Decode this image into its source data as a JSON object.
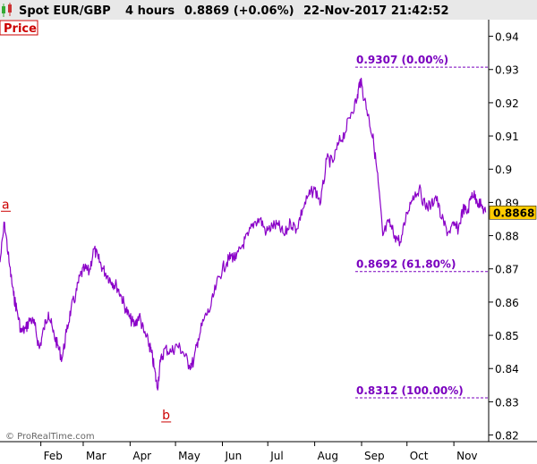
{
  "header": {
    "instrument": "Spot EUR/GBP",
    "timeframe": "4 hours",
    "price_change": "0.8869 (+0.06%)",
    "datetime": "22-Nov-2017 21:42:52"
  },
  "panel_label": "Price",
  "watermark": "© ProRealTime.com",
  "colors": {
    "series": "#8a00c8",
    "annotation": "#7a00bf",
    "marker": "#cc0000",
    "last_price_bg": "#ffcc00",
    "header_bg": "#e8e8e8"
  },
  "chart_data": {
    "type": "line",
    "title": "Spot EUR/GBP",
    "xlabel": "",
    "ylabel": "",
    "ylim": [
      0.818,
      0.945
    ],
    "y_ticks": [
      "0.94",
      "0.93",
      "0.92",
      "0.91",
      "0.9",
      "0.89",
      "0.88",
      "0.87",
      "0.86",
      "0.85",
      "0.84",
      "0.83",
      "0.82"
    ],
    "x_ticks": [
      "Feb",
      "Mar",
      "Apr",
      "May",
      "Jun",
      "Jul",
      "Aug",
      "Sep",
      "Oct",
      "Nov"
    ],
    "x_tick_dates": [
      "2017-02-01",
      "2017-03-01",
      "2017-04-01",
      "2017-05-01",
      "2017-06-01",
      "2017-07-01",
      "2017-08-01",
      "2017-09-01",
      "2017-10-01",
      "2017-11-01"
    ],
    "xlim": [
      "2017-01-05",
      "2017-11-24"
    ],
    "last_price": "0.8868",
    "series": [
      {
        "x": [
          "2017-01-05",
          "2017-01-08",
          "2017-01-11",
          "2017-01-14",
          "2017-01-16",
          "2017-01-19",
          "2017-01-22",
          "2017-01-25",
          "2017-01-28",
          "2017-01-31",
          "2017-02-03",
          "2017-02-06",
          "2017-02-09",
          "2017-02-12",
          "2017-02-15",
          "2017-02-18",
          "2017-02-21",
          "2017-02-24",
          "2017-02-27",
          "2017-03-02",
          "2017-03-05",
          "2017-03-08",
          "2017-03-11",
          "2017-03-14",
          "2017-03-17",
          "2017-03-20",
          "2017-03-23",
          "2017-03-26",
          "2017-03-29",
          "2017-04-01",
          "2017-04-04",
          "2017-04-07",
          "2017-04-10",
          "2017-04-13",
          "2017-04-15",
          "2017-04-17",
          "2017-04-19",
          "2017-04-21",
          "2017-04-24",
          "2017-04-28",
          "2017-05-02",
          "2017-05-06",
          "2017-05-10",
          "2017-05-13",
          "2017-05-16",
          "2017-05-20",
          "2017-05-24",
          "2017-05-28",
          "2017-06-01",
          "2017-06-04",
          "2017-06-07",
          "2017-06-10",
          "2017-06-14",
          "2017-06-18",
          "2017-06-22",
          "2017-06-26",
          "2017-06-30",
          "2017-07-04",
          "2017-07-08",
          "2017-07-12",
          "2017-07-16",
          "2017-07-20",
          "2017-07-24",
          "2017-07-28",
          "2017-08-01",
          "2017-08-05",
          "2017-08-09",
          "2017-08-13",
          "2017-08-17",
          "2017-08-21",
          "2017-08-25",
          "2017-08-29",
          "2017-08-31",
          "2017-09-03",
          "2017-09-06",
          "2017-09-09",
          "2017-09-12",
          "2017-09-15",
          "2017-09-19",
          "2017-09-23",
          "2017-09-27",
          "2017-10-01",
          "2017-10-05",
          "2017-10-09",
          "2017-10-13",
          "2017-10-17",
          "2017-10-20",
          "2017-10-24",
          "2017-10-28",
          "2017-11-01",
          "2017-11-04",
          "2017-11-07",
          "2017-11-10",
          "2017-11-13",
          "2017-11-16",
          "2017-11-19",
          "2017-11-22"
        ],
        "y": [
          0.872,
          0.884,
          0.872,
          0.862,
          0.858,
          0.851,
          0.852,
          0.855,
          0.853,
          0.846,
          0.852,
          0.857,
          0.851,
          0.847,
          0.843,
          0.851,
          0.858,
          0.862,
          0.868,
          0.87,
          0.869,
          0.876,
          0.873,
          0.87,
          0.868,
          0.866,
          0.865,
          0.862,
          0.858,
          0.855,
          0.853,
          0.856,
          0.851,
          0.848,
          0.845,
          0.84,
          0.834,
          0.842,
          0.846,
          0.845,
          0.847,
          0.845,
          0.841,
          0.842,
          0.849,
          0.855,
          0.858,
          0.865,
          0.87,
          0.872,
          0.874,
          0.873,
          0.877,
          0.88,
          0.884,
          0.885,
          0.881,
          0.883,
          0.883,
          0.88,
          0.884,
          0.882,
          0.888,
          0.892,
          0.894,
          0.89,
          0.903,
          0.902,
          0.908,
          0.911,
          0.917,
          0.921,
          0.927,
          0.921,
          0.915,
          0.908,
          0.896,
          0.88,
          0.884,
          0.88,
          0.878,
          0.887,
          0.892,
          0.894,
          0.889,
          0.889,
          0.892,
          0.885,
          0.881,
          0.883,
          0.882,
          0.888,
          0.887,
          0.893,
          0.891,
          0.889,
          0.887
        ]
      }
    ],
    "fibonacci_levels": [
      {
        "label": "0.9307 (0.00%)",
        "value": 0.9307
      },
      {
        "label": "0.8692 (61.80%)",
        "value": 0.8692
      },
      {
        "label": "0.8312 (100.00%)",
        "value": 0.8312
      }
    ],
    "wave_markers": [
      {
        "label": "a",
        "date": "2017-01-05",
        "value": 0.886
      },
      {
        "label": "b",
        "date": "2017-04-21",
        "value": 0.8312
      }
    ]
  }
}
